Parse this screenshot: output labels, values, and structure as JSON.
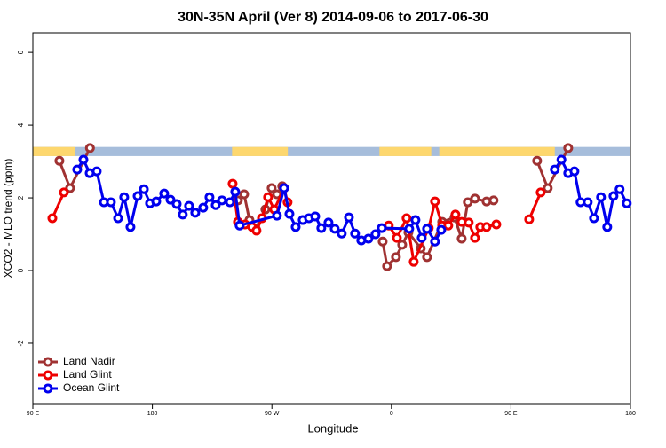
{
  "chart_data": {
    "type": "line",
    "title": "30N-35N April (Ver 8)   2014-09-06 to 2017-06-30",
    "x_label": "Longitude",
    "y_label": "XCO2 - MLO trend (ppm)",
    "xlim": [
      90,
      540
    ],
    "ylim": [
      -3.66,
      6.54
    ],
    "xticks": [
      {
        "value": 90,
        "label": "90 E"
      },
      {
        "value": 180,
        "label": "180"
      },
      {
        "value": 270,
        "label": "90 W"
      },
      {
        "value": 360,
        "label": "0"
      },
      {
        "value": 450,
        "label": "90 E"
      },
      {
        "value": 540,
        "label": "180"
      }
    ],
    "yticks": [
      -2,
      0,
      2,
      4,
      6
    ],
    "legend": "bottom-left",
    "band": {
      "ylim": [
        3.15,
        3.4
      ],
      "land_color": "#fdd76e",
      "ocean_color": "#a6bddb",
      "land": [
        [
          90,
          122
        ],
        [
          240,
          282
        ],
        [
          351,
          390
        ],
        [
          396,
          483
        ]
      ]
    },
    "series": [
      {
        "name": "Land Nadir",
        "color": "#a03232",
        "x": [
          110,
          118,
          133,
          null,
          244.4,
          249.1,
          253.1,
          257.8,
          265.1,
          269.8,
          273.8,
          277.8,
          null,
          353.4,
          356.7,
          363.4,
          368.1,
          372.8,
          382.1,
          386.8,
          398.2,
          407.5,
          412.9,
          417.5,
          422.9,
          431.6,
          436.9,
          null,
          469.7,
          477.7,
          493.1
        ],
        "values": [
          3.02,
          2.27,
          3.37,
          null,
          1.93,
          2.1,
          1.39,
          1.15,
          1.68,
          2.27,
          2.1,
          2.32,
          null,
          0.8,
          0.12,
          0.37,
          0.71,
          1.05,
          0.61,
          0.37,
          1.34,
          1.46,
          0.88,
          1.88,
          1.98,
          1.9,
          1.93,
          null,
          3.02,
          2.27,
          3.37
        ]
      },
      {
        "name": "Land Glint",
        "color": "#ee0000",
        "x": [
          104.7,
          113.4,
          null,
          240.4,
          244.4,
          249.8,
          255.1,
          258.4,
          262.5,
          267.1,
          271.8,
          279.2,
          281.8,
          null,
          358.0,
          364.1,
          371.4,
          376.8,
          388.1,
          392.8,
          398.2,
          402.8,
          408.2,
          412.9,
          418.2,
          422.9,
          426.9,
          431.6,
          439.0,
          null,
          463.7,
          472.4
        ],
        "values": [
          1.44,
          2.15,
          null,
          2.39,
          1.34,
          1.27,
          1.2,
          1.1,
          1.44,
          2.02,
          1.68,
          2.27,
          1.88,
          null,
          1.24,
          0.9,
          1.44,
          0.24,
          1.17,
          1.9,
          1.24,
          1.24,
          1.54,
          1.34,
          1.32,
          0.9,
          1.2,
          1.2,
          1.27,
          null,
          1.41,
          2.15
        ]
      },
      {
        "name": "Ocean Glint",
        "color": "#0000ee",
        "x": [
          123.4,
          128.1,
          132.8,
          138.1,
          143.5,
          148.8,
          154.2,
          158.8,
          163.5,
          168.9,
          173.6,
          178.2,
          182.9,
          188.9,
          193.6,
          198.3,
          202.9,
          207.6,
          212.3,
          218.3,
          223.0,
          227.7,
          232.4,
          238.4,
          242.4,
          245.7,
          273.8,
          279.2,
          283.2,
          287.9,
          293.2,
          297.9,
          302.6,
          307.2,
          312.6,
          317.3,
          322.6,
          328.0,
          332.6,
          337.3,
          342.7,
          348.0,
          352.7,
          373.4,
          378.1,
          382.8,
          386.8,
          392.8,
          397.5,
          null,
          483,
          488,
          493.1,
          497.8,
          502.4,
          507.8,
          512.5,
          517.8,
          522.5,
          527.2,
          531.8,
          537.2
        ],
        "values": [
          2.78,
          3.05,
          2.68,
          2.73,
          1.88,
          1.88,
          1.44,
          2.02,
          1.2,
          2.05,
          2.24,
          1.85,
          1.9,
          2.12,
          1.95,
          1.83,
          1.54,
          1.78,
          1.59,
          1.73,
          2.02,
          1.8,
          1.93,
          1.88,
          2.17,
          1.24,
          1.51,
          2.27,
          1.56,
          1.2,
          1.39,
          1.44,
          1.49,
          1.17,
          1.32,
          1.15,
          1.02,
          1.46,
          1.02,
          0.83,
          0.88,
          1.0,
          1.17,
          1.15,
          1.39,
          0.9,
          1.15,
          0.8,
          1.12,
          null,
          2.78,
          3.05,
          2.68,
          2.73,
          1.88,
          1.88,
          1.44,
          2.02,
          1.2,
          2.05,
          2.24,
          1.85
        ]
      }
    ]
  }
}
